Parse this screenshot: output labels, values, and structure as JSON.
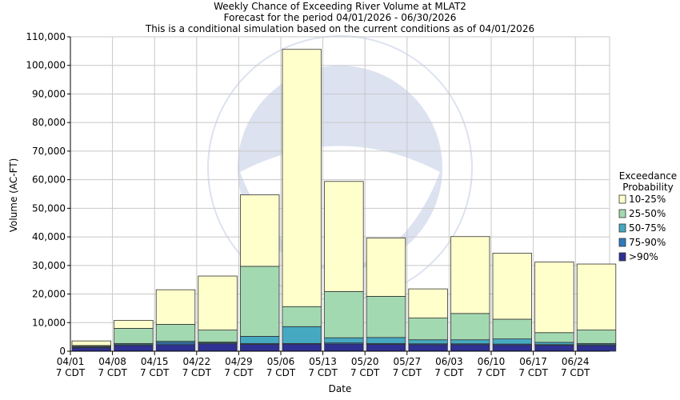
{
  "chart_data": {
    "type": "bar",
    "stacked": true,
    "title": "Weekly Chance of Exceeding River Volume at MLAT2",
    "subtitle": "Forecast for the period 04/01/2026 - 06/30/2026",
    "subtitle2": "This is a conditional simulation based on the current conditions as of 04/01/2026",
    "xlabel": "Date",
    "ylabel": "Volume (AC-FT)",
    "ylim": [
      0,
      110000
    ],
    "yticks": [
      "0",
      "10,000",
      "20,000",
      "30,000",
      "40,000",
      "50,000",
      "60,000",
      "70,000",
      "80,000",
      "90,000",
      "100,000",
      "110,000"
    ],
    "xtick_dates": [
      "04/01",
      "04/08",
      "04/15",
      "04/22",
      "04/29",
      "05/06",
      "05/13",
      "05/20",
      "05/27",
      "06/03",
      "06/10",
      "06/17",
      "06/24"
    ],
    "xtick_sub": "7 CDT",
    "grid": true,
    "legend_position": "right",
    "legend_title_lines": [
      "Exceedance",
      "Probability"
    ],
    "series": [
      {
        "name": ">90%",
        "color": "#2e3192",
        "values": [
          1200,
          2000,
          2300,
          2600,
          2400,
          2500,
          2500,
          2400,
          2300,
          2300,
          2200,
          2100,
          2000
        ]
      },
      {
        "name": "75-90%",
        "color": "#2f78bd",
        "values": [
          200,
          300,
          700,
          300,
          300,
          200,
          400,
          300,
          300,
          300,
          300,
          200,
          300
        ]
      },
      {
        "name": "50-75%",
        "color": "#46a9c2",
        "values": [
          300,
          400,
          500,
          300,
          2500,
          5900,
          1800,
          2100,
          1400,
          1400,
          1800,
          800,
          400
        ]
      },
      {
        "name": "25-50%",
        "color": "#a3d9b1",
        "values": [
          300,
          5300,
          5900,
          4200,
          24500,
          7000,
          16200,
          14400,
          7600,
          9200,
          6900,
          3400,
          4700
        ]
      },
      {
        "name": "10-25%",
        "color": "#ffffcc",
        "values": [
          1600,
          2800,
          12100,
          18900,
          25000,
          90000,
          38500,
          20400,
          10200,
          26900,
          23100,
          24700,
          23100
        ]
      }
    ]
  }
}
